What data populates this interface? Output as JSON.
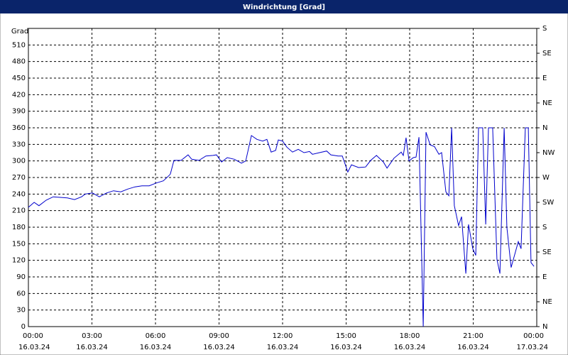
{
  "chart_data": {
    "type": "line",
    "title": "Windrichtung [Grad]",
    "y_label": "Grad",
    "color": "#0000cc",
    "grid": true,
    "x": [
      0,
      0.27,
      0.5,
      0.84,
      1.17,
      1.51,
      1.84,
      2.18,
      2.51,
      2.68,
      3.02,
      3.35,
      3.69,
      4.02,
      4.36,
      4.69,
      5.03,
      5.36,
      5.7,
      6.03,
      6.37,
      6.57,
      6.7,
      6.87,
      7.21,
      7.54,
      7.71,
      8.05,
      8.38,
      8.72,
      8.88,
      9.12,
      9.39,
      9.72,
      10.06,
      10.26,
      10.53,
      10.79,
      11.06,
      11.26,
      11.46,
      11.67,
      11.8,
      12.0,
      12.2,
      12.47,
      12.74,
      13.01,
      13.27,
      13.41,
      13.74,
      14.08,
      14.28,
      14.62,
      14.82,
      15.08,
      15.25,
      15.59,
      15.92,
      16.16,
      16.43,
      16.76,
      16.93,
      17.26,
      17.6,
      17.7,
      17.83,
      17.97,
      18.17,
      18.3,
      18.44,
      18.64,
      18.77,
      18.97,
      19.17,
      19.38,
      19.51,
      19.71,
      19.85,
      19.98,
      20.11,
      20.31,
      20.45,
      20.65,
      20.78,
      20.98,
      21.12,
      21.25,
      21.45,
      21.59,
      21.72,
      21.92,
      22.12,
      22.26,
      22.46,
      22.59,
      22.79,
      23.13,
      23.26,
      23.46,
      23.6,
      23.73,
      23.87
    ],
    "values": [
      216,
      225,
      219,
      229,
      235,
      234,
      233,
      230,
      235,
      240,
      242,
      235,
      242,
      246,
      244,
      249,
      253,
      255,
      255,
      260,
      264,
      271,
      276,
      301,
      301,
      311,
      303,
      301,
      309,
      310,
      311,
      298,
      306,
      303,
      296,
      300,
      346,
      339,
      336,
      339,
      316,
      319,
      338,
      336,
      325,
      316,
      321,
      315,
      317,
      312,
      315,
      318,
      311,
      309,
      309,
      280,
      293,
      288,
      289,
      301,
      310,
      298,
      287,
      305,
      316,
      310,
      342,
      300,
      306,
      307,
      343,
      0,
      352,
      329,
      326,
      312,
      315,
      244,
      237,
      360,
      219,
      183,
      199,
      96,
      185,
      141,
      129,
      360,
      360,
      185,
      360,
      360,
      122,
      96,
      360,
      180,
      107,
      154,
      141,
      360,
      360,
      116,
      109
    ],
    "xlim": [
      0,
      24
    ],
    "xticks": [
      {
        "value": 0,
        "label": "00:00"
      },
      {
        "value": 3,
        "label": "03:00"
      },
      {
        "value": 6,
        "label": "06:00"
      },
      {
        "value": 9,
        "label": "09:00"
      },
      {
        "value": 12,
        "label": "12:00"
      },
      {
        "value": 15,
        "label": "15:00"
      },
      {
        "value": 18,
        "label": "18:00"
      },
      {
        "value": 21,
        "label": "21:00"
      },
      {
        "value": 24,
        "label": "00:00"
      }
    ],
    "xtick_dates": [
      "16.03.24",
      "16.03.24",
      "16.03.24",
      "16.03.24",
      "16.03.24",
      "16.03.24",
      "16.03.24",
      "16.03.24",
      "17.03.24"
    ],
    "ylim": [
      0,
      540
    ],
    "yticks": [
      0,
      30,
      60,
      90,
      120,
      150,
      180,
      210,
      240,
      270,
      300,
      330,
      360,
      390,
      420,
      450,
      480,
      510
    ],
    "y2lim": [
      0,
      540
    ],
    "y2ticks": [
      {
        "value": 540,
        "label": "S"
      },
      {
        "value": 495,
        "label": "SE"
      },
      {
        "value": 450,
        "label": "E"
      },
      {
        "value": 405,
        "label": "NE"
      },
      {
        "value": 360,
        "label": "N"
      },
      {
        "value": 315,
        "label": "NW"
      },
      {
        "value": 270,
        "label": "W"
      },
      {
        "value": 225,
        "label": "SW"
      },
      {
        "value": 180,
        "label": "S"
      },
      {
        "value": 135,
        "label": "SE"
      },
      {
        "value": 90,
        "label": "E"
      },
      {
        "value": 45,
        "label": "NE"
      },
      {
        "value": 0,
        "label": "N"
      }
    ]
  }
}
